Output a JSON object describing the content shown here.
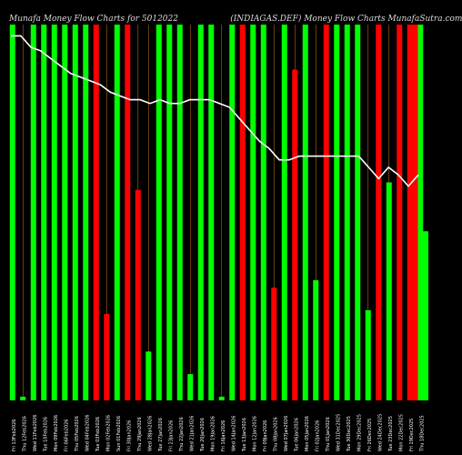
{
  "chart_data": {
    "type": "bar",
    "title": "Munafa Money Flow Charts for 5012022                    (INDIAGAS.DEF) Money Flow Charts MunafaSutra.com",
    "colors": {
      "up": "#00ff00",
      "down": "#ff0000",
      "line": "#ffffff",
      "grid": "#b36a1a",
      "background": "#000000"
    },
    "ylim": [
      0,
      100
    ],
    "categories": [
      "Fri 13Feb2026",
      "Thu 12Feb2026",
      "Wed 11Feb2026",
      "Tue 10Feb2026",
      "Mon 09Feb2026",
      "Fri 06Feb2026",
      "Thu 05Feb2026",
      "Wed 04Feb2026",
      "Tue 03Feb2026",
      "Mon 02Feb2026",
      "Sun 01Feb2026",
      "Fri 30Jan2026",
      "Thu 29Jan2026",
      "Wed 28Jan2026",
      "Tue 27Jan2026",
      "Fri 23Jan2026",
      "Thu 22Jan2026",
      "Wed 21Jan2026",
      "Tue 20Jan2026",
      "Mon 19Jan2026",
      "Fri 16Jan2026",
      "Wed 14Jan2026",
      "Tue 13Jan2026",
      "Mon 12Jan2026",
      "Fri 09Jan2026",
      "Thu 08Jan2026",
      "Wed 07Jan2026",
      "Tue 06Jan2026",
      "Mon 05Jan2026",
      "Fri 02Jan2026",
      "Thu 01Jan2026",
      "Wed 31Dec2025",
      "Tue 30Dec2025",
      "Mon 29Dec2025",
      "Fri 26Dec2025",
      "Wed 24Dec2025",
      "Tue 23Dec2025",
      "Mon 22Dec2025",
      "Fri 19Dec2025",
      "Thu 18Dec2025"
    ],
    "values": [
      100,
      1,
      100,
      100,
      100,
      100,
      100,
      100,
      100,
      23,
      100,
      100,
      56,
      13,
      100,
      100,
      100,
      7,
      100,
      100,
      1,
      100,
      100,
      100,
      100,
      30,
      100,
      88,
      100,
      32,
      100,
      100,
      100,
      100,
      24,
      100,
      58,
      100,
      100,
      100
    ],
    "directions": [
      "up",
      "up",
      "up",
      "up",
      "up",
      "up",
      "up",
      "up",
      "down",
      "down",
      "up",
      "down",
      "down",
      "up",
      "up",
      "up",
      "up",
      "up",
      "up",
      "up",
      "up",
      "up",
      "down",
      "up",
      "up",
      "down",
      "up",
      "down",
      "up",
      "up",
      "down",
      "up",
      "up",
      "up",
      "up",
      "down",
      "up",
      "down",
      "down",
      "up"
    ],
    "line": [
      97,
      97,
      94,
      93,
      91,
      89,
      87,
      86,
      85,
      84,
      82,
      81,
      80,
      80,
      79,
      80,
      79,
      79,
      80,
      80,
      80,
      79,
      78,
      75,
      72,
      69,
      67,
      64,
      64,
      65,
      65,
      65,
      65,
      65,
      65,
      65,
      62,
      59,
      62,
      60,
      57,
      60
    ],
    "extra_bars": [
      {
        "index": 38.5,
        "value": 100,
        "direction": "down"
      },
      {
        "index": 39.5,
        "value": 45,
        "direction": "up"
      }
    ]
  }
}
